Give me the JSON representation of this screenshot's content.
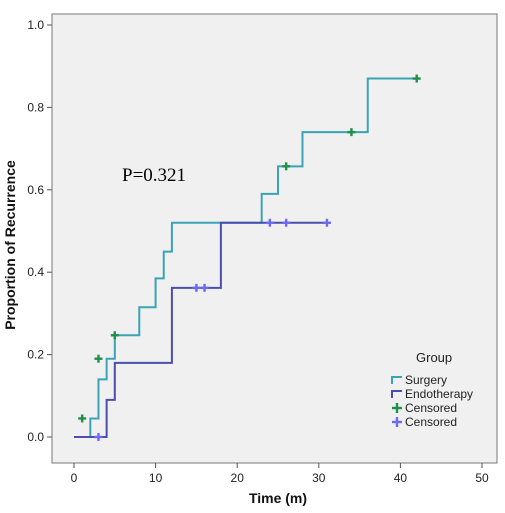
{
  "chart_data": {
    "type": "line",
    "title": "",
    "xlabel": "Time (m)",
    "ylabel": "Proportion of Recurrence",
    "xlim": [
      0,
      50
    ],
    "ylim": [
      0,
      1.0
    ],
    "xticks": [
      0,
      10,
      20,
      30,
      40,
      50
    ],
    "yticks": [
      0.0,
      0.2,
      0.4,
      0.6,
      0.8,
      1.0
    ],
    "xtick_labels": [
      "0",
      "10",
      "20",
      "30",
      "40",
      "50"
    ],
    "ytick_labels": [
      "0.0",
      "0.2",
      "0.4",
      "0.6",
      "0.8",
      "1.0"
    ],
    "grid": false,
    "background": "#f0f0f0",
    "annotation": "P=0.321",
    "legend": {
      "title": "Group",
      "placement": "bottom-right",
      "entries": [
        {
          "label": "Surgery",
          "kind": "step",
          "color": "#3aa3b5"
        },
        {
          "label": "Endotherapy",
          "kind": "step",
          "color": "#4a4fae"
        },
        {
          "label": "Censored",
          "kind": "censor",
          "color": "#1f8f4a"
        },
        {
          "label": "Censored",
          "kind": "censor",
          "color": "#6b6bf0"
        }
      ]
    },
    "series": [
      {
        "name": "Surgery",
        "color": "#3aa3b5",
        "censor_color": "#1f8f4a",
        "steps": [
          [
            0,
            0.0
          ],
          [
            2,
            0.045
          ],
          [
            3,
            0.14
          ],
          [
            4,
            0.19
          ],
          [
            5,
            0.247
          ],
          [
            8,
            0.315
          ],
          [
            10,
            0.385
          ],
          [
            11,
            0.45
          ],
          [
            12,
            0.52
          ],
          [
            23,
            0.59
          ],
          [
            25,
            0.657
          ],
          [
            28,
            0.74
          ],
          [
            36,
            0.87
          ],
          [
            42,
            0.87
          ]
        ],
        "censored": [
          [
            1,
            0.045
          ],
          [
            3,
            0.19
          ],
          [
            5,
            0.247
          ],
          [
            26,
            0.657
          ],
          [
            34,
            0.74
          ],
          [
            42,
            0.87
          ]
        ]
      },
      {
        "name": "Endotherapy",
        "color": "#4a4fae",
        "censor_color": "#6b6bf0",
        "steps": [
          [
            0,
            0.0
          ],
          [
            4,
            0.09
          ],
          [
            5,
            0.18
          ],
          [
            12,
            0.362
          ],
          [
            18,
            0.52
          ],
          [
            31,
            0.52
          ]
        ],
        "censored": [
          [
            3,
            0.0
          ],
          [
            15,
            0.362
          ],
          [
            16,
            0.362
          ],
          [
            24,
            0.52
          ],
          [
            26,
            0.52
          ],
          [
            31,
            0.52
          ]
        ]
      }
    ]
  }
}
